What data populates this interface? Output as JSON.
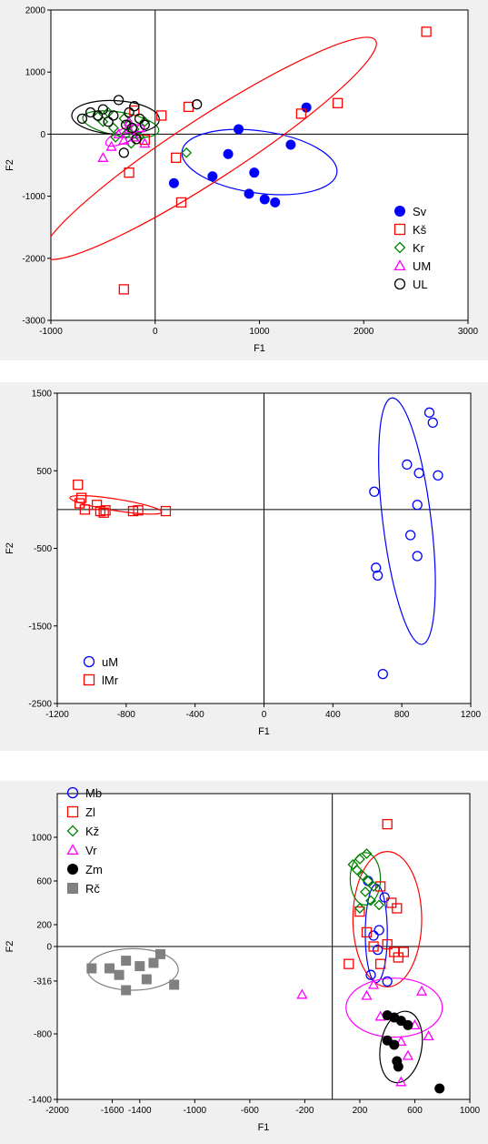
{
  "chart_data": [
    {
      "type": "scatter",
      "xlabel": "F1",
      "ylabel": "F2",
      "xlim": [
        -1000,
        3000
      ],
      "ylim": [
        -3000,
        2000
      ],
      "xticks": [
        "-1000",
        "0",
        "1000",
        "2000",
        "3000"
      ],
      "yticks": [
        "-3000",
        "-2000",
        "-1000",
        "0",
        "1000",
        "2000"
      ],
      "legend_position": "bottom-right",
      "series": [
        {
          "name": "Sv",
          "marker": "filled-circle",
          "color": "#0000ff",
          "points": [
            [
              1450,
              430
            ],
            [
              800,
              80
            ],
            [
              1300,
              -170
            ],
            [
              700,
              -320
            ],
            [
              950,
              -620
            ],
            [
              550,
              -680
            ],
            [
              180,
              -790
            ],
            [
              900,
              -960
            ],
            [
              1050,
              -1050
            ],
            [
              1150,
              -1100
            ]
          ],
          "ellipse": {
            "cx": 1000,
            "cy": -450,
            "rx": 750,
            "ry": 500,
            "angle": -8
          }
        },
        {
          "name": "Kš",
          "marker": "open-square",
          "color": "#ff0000",
          "points": [
            [
              2600,
              1650
            ],
            [
              1750,
              500
            ],
            [
              1400,
              330
            ],
            [
              320,
              440
            ],
            [
              60,
              300
            ],
            [
              -100,
              -90
            ],
            [
              200,
              -380
            ],
            [
              -250,
              -620
            ],
            [
              250,
              -1100
            ],
            [
              -300,
              -2500
            ],
            [
              -200,
              380
            ]
          ],
          "ellipse": {
            "cx": 520,
            "cy": -230,
            "rx": 1900,
            "ry": 500,
            "angle": 33
          }
        },
        {
          "name": "Kr",
          "marker": "open-diamond",
          "color": "#008000",
          "points": [
            [
              -550,
              280
            ],
            [
              -500,
              200
            ],
            [
              -450,
              350
            ],
            [
              -400,
              100
            ],
            [
              -380,
              -50
            ],
            [
              -300,
              250
            ],
            [
              -280,
              0
            ],
            [
              -250,
              150
            ],
            [
              -230,
              -150
            ],
            [
              -200,
              80
            ],
            [
              -150,
              -50
            ],
            [
              -100,
              200
            ],
            [
              300,
              -300
            ]
          ],
          "ellipse": {
            "cx": -330,
            "cy": 160,
            "rx": 370,
            "ry": 190,
            "angle": -10
          }
        },
        {
          "name": "UM",
          "marker": "open-triangle",
          "color": "#ff00ff",
          "points": [
            [
              -500,
              -380
            ],
            [
              -420,
              -200
            ],
            [
              -350,
              0
            ],
            [
              -300,
              -100
            ],
            [
              -250,
              80
            ],
            [
              -200,
              -50
            ],
            [
              -150,
              100
            ],
            [
              -100,
              -150
            ],
            [
              -250,
              200
            ]
          ],
          "ellipse": {
            "cx": -290,
            "cy": -20,
            "rx": 200,
            "ry": 110,
            "angle": 25
          }
        },
        {
          "name": "UL",
          "marker": "open-circle",
          "color": "#000000",
          "points": [
            [
              -700,
              250
            ],
            [
              -620,
              350
            ],
            [
              -550,
              300
            ],
            [
              -500,
              400
            ],
            [
              -450,
              200
            ],
            [
              -400,
              300
            ],
            [
              -350,
              550
            ],
            [
              -300,
              -300
            ],
            [
              -280,
              150
            ],
            [
              -250,
              350
            ],
            [
              -220,
              100
            ],
            [
              -200,
              450
            ],
            [
              -180,
              -80
            ],
            [
              -150,
              250
            ],
            [
              -100,
              150
            ],
            [
              400,
              480
            ]
          ],
          "ellipse": {
            "cx": -380,
            "cy": 270,
            "rx": 420,
            "ry": 270,
            "angle": -3
          }
        }
      ]
    },
    {
      "type": "scatter",
      "xlabel": "F1",
      "ylabel": "F2",
      "xlim": [
        -1200,
        1200
      ],
      "ylim": [
        -2500,
        1500
      ],
      "xticks": [
        "-1200",
        "-800",
        "-400",
        "0",
        "400",
        "800",
        "1200"
      ],
      "yticks": [
        "-2500",
        "-1500",
        "-500",
        "500",
        "1500"
      ],
      "legend_position": "bottom-left",
      "series": [
        {
          "name": "uM",
          "marker": "open-circle",
          "color": "#0000ff",
          "points": [
            [
              960,
              1250
            ],
            [
              980,
              1120
            ],
            [
              830,
              580
            ],
            [
              900,
              470
            ],
            [
              1010,
              440
            ],
            [
              640,
              230
            ],
            [
              890,
              60
            ],
            [
              850,
              -330
            ],
            [
              890,
              -600
            ],
            [
              650,
              -750
            ],
            [
              660,
              -850
            ],
            [
              690,
              -2120
            ]
          ],
          "ellipse": {
            "cx": 830,
            "cy": -150,
            "rx": 140,
            "ry": 1600,
            "angle": 7
          }
        },
        {
          "name": "lMr",
          "marker": "open-square",
          "color": "#ff0000",
          "points": [
            [
              -1080,
              320
            ],
            [
              -1060,
              150
            ],
            [
              -1070,
              80
            ],
            [
              -1040,
              0
            ],
            [
              -970,
              60
            ],
            [
              -950,
              -20
            ],
            [
              -930,
              -40
            ],
            [
              -920,
              -10
            ],
            [
              -760,
              -20
            ],
            [
              -730,
              -10
            ],
            [
              -570,
              -20
            ]
          ],
          "ellipse": {
            "cx": -860,
            "cy": 60,
            "rx": 270,
            "ry": 75,
            "angle": -9
          }
        }
      ]
    },
    {
      "type": "scatter",
      "xlabel": "F1",
      "ylabel": "F2",
      "xlim": [
        -2000,
        1000
      ],
      "ylim": [
        -1400,
        1400
      ],
      "xticks": [
        "-2000",
        "-1600",
        "-1400",
        "-1000",
        "-600",
        "-200",
        "200",
        "600",
        "1000"
      ],
      "yticks": [
        "-1400",
        "-800",
        "-316",
        "0",
        "200",
        "600",
        "1000"
      ],
      "legend_position": "top-left",
      "series": [
        {
          "name": "Mb",
          "marker": "open-circle",
          "color": "#0000ff",
          "points": [
            [
              260,
              600
            ],
            [
              340,
              150
            ],
            [
              300,
              100
            ],
            [
              380,
              450
            ],
            [
              330,
              -30
            ],
            [
              400,
              -320
            ],
            [
              280,
              -260
            ]
          ],
          "ellipse": {
            "cx": 320,
            "cy": 120,
            "rx": 80,
            "ry": 450,
            "angle": 0
          }
        },
        {
          "name": "Zl",
          "marker": "open-square",
          "color": "#ff0000",
          "points": [
            [
              400,
              1120
            ],
            [
              350,
              550
            ],
            [
              430,
              400
            ],
            [
              470,
              350
            ],
            [
              200,
              320
            ],
            [
              250,
              130
            ],
            [
              300,
              0
            ],
            [
              400,
              20
            ],
            [
              480,
              -100
            ],
            [
              520,
              -50
            ],
            [
              450,
              -50
            ],
            [
              120,
              -160
            ],
            [
              350,
              -160
            ]
          ],
          "ellipse": {
            "cx": 400,
            "cy": 250,
            "rx": 250,
            "ry": 620,
            "angle": 0
          }
        },
        {
          "name": "Kž",
          "marker": "open-diamond",
          "color": "#008000",
          "points": [
            [
              150,
              750
            ],
            [
              200,
              800
            ],
            [
              250,
              850
            ],
            [
              180,
              700
            ],
            [
              220,
              650
            ],
            [
              260,
              600
            ],
            [
              300,
              550
            ],
            [
              240,
              500
            ],
            [
              280,
              420
            ],
            [
              340,
              380
            ],
            [
              200,
              350
            ]
          ],
          "ellipse": {
            "cx": 240,
            "cy": 620,
            "rx": 110,
            "ry": 240,
            "angle": 0
          }
        },
        {
          "name": "Vr",
          "marker": "open-triangle",
          "color": "#ff00ff",
          "points": [
            [
              -220,
              -440
            ],
            [
              300,
              -350
            ],
            [
              250,
              -450
            ],
            [
              650,
              -410
            ],
            [
              600,
              -720
            ],
            [
              350,
              -640
            ],
            [
              500,
              -870
            ],
            [
              550,
              -1000
            ],
            [
              700,
              -820
            ],
            [
              500,
              -1240
            ]
          ],
          "ellipse": {
            "cx": 450,
            "cy": -560,
            "rx": 350,
            "ry": 270,
            "angle": 0
          }
        },
        {
          "name": "Zm",
          "marker": "filled-circle",
          "color": "#000000",
          "points": [
            [
              400,
              -630
            ],
            [
              450,
              -650
            ],
            [
              500,
              -680
            ],
            [
              550,
              -720
            ],
            [
              400,
              -860
            ],
            [
              450,
              -900
            ],
            [
              470,
              -1050
            ],
            [
              480,
              -1100
            ],
            [
              780,
              -1300
            ]
          ],
          "ellipse": {
            "cx": 500,
            "cy": -920,
            "rx": 150,
            "ry": 330,
            "angle": -10
          }
        },
        {
          "name": "Rč",
          "marker": "filled-square",
          "color": "#808080",
          "points": [
            [
              -1750,
              -200
            ],
            [
              -1620,
              -200
            ],
            [
              -1550,
              -260
            ],
            [
              -1500,
              -130
            ],
            [
              -1400,
              -180
            ],
            [
              -1300,
              -150
            ],
            [
              -1250,
              -70
            ],
            [
              -1150,
              -350
            ],
            [
              -1350,
              -300
            ],
            [
              -1500,
              -400
            ]
          ],
          "ellipse": {
            "cx": -1450,
            "cy": -210,
            "rx": 330,
            "ry": 190,
            "angle": 0
          }
        }
      ]
    }
  ]
}
